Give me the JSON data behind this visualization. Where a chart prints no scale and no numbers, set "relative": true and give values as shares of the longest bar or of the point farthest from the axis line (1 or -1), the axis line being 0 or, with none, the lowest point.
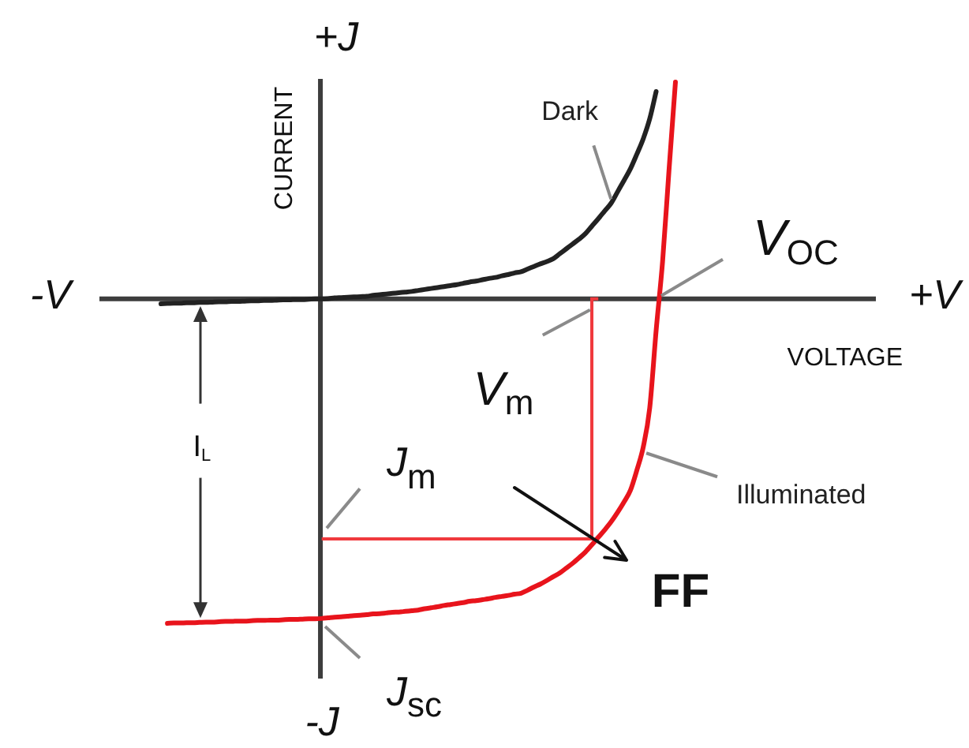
{
  "chart_data": {
    "type": "line",
    "relative": true,
    "xlabel": "VOLTAGE",
    "ylabel": "CURRENT",
    "categories": [
      null,
      null,
      null,
      null,
      null,
      null,
      null,
      null,
      null,
      null,
      null,
      null,
      null,
      null,
      null,
      null,
      null,
      null,
      null,
      null,
      null,
      null,
      null,
      null,
      null,
      null,
      null,
      null,
      null,
      null,
      null,
      null,
      null,
      null,
      null,
      null,
      null,
      null,
      null,
      null,
      null,
      null,
      null,
      null,
      null,
      null,
      null,
      null,
      null,
      null,
      null,
      null,
      null,
      null,
      null,
      null,
      null,
      null,
      null,
      null,
      null,
      null,
      null,
      null,
      null,
      null,
      null,
      null,
      null,
      null,
      null,
      null,
      null,
      null,
      null,
      null,
      null,
      null,
      null,
      null,
      null
    ],
    "series": [
      {
        "name": "Dark",
        "color": "#222222",
        "values": [
          -0.015,
          -0.014,
          -0.013,
          -0.013,
          -0.012,
          -0.012,
          -0.011,
          -0.011,
          -0.01,
          -0.009,
          -0.009,
          -0.008,
          -0.008,
          -0.007,
          -0.006,
          -0.006,
          -0.005,
          -0.005,
          -0.004,
          -0.003,
          -0.003,
          -0.002,
          -0.002,
          -0.001,
          0,
          0,
          0.001,
          0.003,
          0.004,
          0.005,
          0.006,
          0.007,
          0.008,
          0.011,
          0.013,
          0.015,
          0.017,
          0.019,
          0.021,
          0.023,
          0.026,
          0.029,
          0.032,
          0.035,
          0.038,
          0.041,
          0.044,
          0.048,
          0.052,
          0.055,
          0.059,
          0.063,
          0.066,
          0.071,
          0.075,
          0.08,
          0.084,
          0.092,
          0.1,
          0.108,
          0.115,
          0.124,
          0.139,
          0.154,
          0.169,
          0.184,
          0.201,
          0.224,
          0.247,
          0.271,
          0.295,
          0.33,
          0.365,
          0.401,
          0.446,
          0.494,
          0.555,
          0.639,
          null,
          null,
          null
        ]
      },
      {
        "name": "Illuminated",
        "color": "#e8141c",
        "values": [
          null,
          -1,
          -0.999,
          -0.999,
          -0.998,
          -0.998,
          -0.997,
          -0.996,
          -0.996,
          -0.995,
          -0.994,
          -0.994,
          -0.993,
          -0.993,
          -0.992,
          -0.991,
          -0.991,
          -0.99,
          -0.99,
          -0.989,
          -0.988,
          -0.988,
          -0.987,
          -0.986,
          -0.986,
          -0.985,
          -0.983,
          -0.981,
          -0.98,
          -0.978,
          -0.976,
          -0.975,
          -0.973,
          -0.971,
          -0.97,
          -0.968,
          -0.966,
          -0.965,
          -0.963,
          -0.961,
          -0.959,
          -0.955,
          -0.952,
          -0.949,
          -0.945,
          -0.942,
          -0.939,
          -0.936,
          -0.932,
          -0.93,
          -0.927,
          -0.924,
          -0.92,
          -0.917,
          -0.914,
          -0.91,
          -0.907,
          -0.898,
          -0.888,
          -0.879,
          -0.868,
          -0.856,
          -0.845,
          -0.83,
          -0.815,
          -0.798,
          -0.78,
          -0.758,
          -0.735,
          -0.712,
          -0.687,
          -0.658,
          -0.626,
          -0.59,
          -0.528,
          -0.456,
          -0.336,
          -0.097,
          0.115,
          0.397,
          0.668
        ]
      },
      {
        "type": "step",
        "color": "#f0393d",
        "values": [
          null,
          null,
          null,
          null,
          null,
          null,
          null,
          null,
          null,
          null,
          null,
          null,
          null,
          null,
          null,
          null,
          null,
          null,
          null,
          null,
          null,
          null,
          null,
          null,
          null,
          -0.74,
          -0.74,
          -0.74,
          -0.74,
          -0.74,
          -0.74,
          -0.74,
          -0.74,
          -0.74,
          -0.74,
          -0.74,
          -0.74,
          -0.74,
          -0.74,
          -0.74,
          -0.74,
          -0.74,
          -0.74,
          -0.74,
          -0.74,
          -0.74,
          -0.74,
          -0.74,
          -0.74,
          -0.74,
          -0.74,
          -0.74,
          -0.74,
          -0.74,
          -0.74,
          -0.74,
          -0.74,
          -0.74,
          -0.74,
          -0.74,
          -0.74,
          -0.74,
          -0.74,
          -0.74,
          -0.74,
          -0.74,
          -0.74,
          -0.74,
          0,
          null,
          null,
          null,
          null,
          null,
          null,
          null,
          null,
          null,
          null,
          null,
          null
        ]
      }
    ],
    "annotations": [
      "-V",
      "+V",
      "+J",
      "-J",
      "V$_{OC}$",
      "V$_{m}$",
      "J$_{m}$",
      {
        "text": "J$_{sc}$",
        "y": -0.99
      },
      "I$_{L}$",
      "FF"
    ]
  }
}
